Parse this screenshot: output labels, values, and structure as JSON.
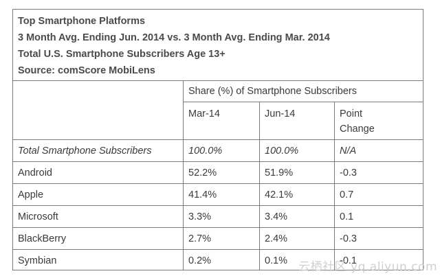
{
  "header": {
    "line1": "Top Smartphone Platforms",
    "line2": "3 Month Avg. Ending Jun. 2014 vs. 3 Month Avg. Ending Mar. 2014",
    "line3": "Total U.S. Smartphone Subscribers Age 13+",
    "line4": "Source: comScore MobiLens"
  },
  "group_header": "Share (%) of Smartphone Subscribers",
  "columns": {
    "c1": "Mar-14",
    "c2": "Jun-14",
    "c3_line1": "Point",
    "c3_line2": "Change"
  },
  "rows": [
    {
      "name": "Total Smartphone Subscribers",
      "mar": "100.0%",
      "jun": "100.0%",
      "change": "N/A"
    },
    {
      "name": "Android",
      "mar": "52.2%",
      "jun": "51.9%",
      "change": "-0.3"
    },
    {
      "name": "Apple",
      "mar": "41.4%",
      "jun": "42.1%",
      "change": "0.7"
    },
    {
      "name": "Microsoft",
      "mar": "3.3%",
      "jun": "3.4%",
      "change": "0.1"
    },
    {
      "name": "BlackBerry",
      "mar": "2.7%",
      "jun": "2.4%",
      "change": "-0.3"
    },
    {
      "name": "Symbian",
      "mar": "0.2%",
      "jun": "0.1%",
      "change": "-0.1"
    }
  ],
  "watermark": "云栖社区 yq.aliyun.com",
  "chart_data": {
    "type": "table",
    "title": "Top Smartphone Platforms",
    "columns": [
      "Mar-14",
      "Jun-14",
      "Point Change"
    ],
    "categories": [
      "Total Smartphone Subscribers",
      "Android",
      "Apple",
      "Microsoft",
      "BlackBerry",
      "Symbian"
    ],
    "series": [
      {
        "name": "Mar-14",
        "values": [
          100.0,
          52.2,
          41.4,
          3.3,
          2.7,
          0.2
        ]
      },
      {
        "name": "Jun-14",
        "values": [
          100.0,
          51.9,
          42.1,
          3.4,
          2.4,
          0.1
        ]
      },
      {
        "name": "Point Change",
        "values": [
          null,
          -0.3,
          0.7,
          0.1,
          -0.3,
          -0.1
        ]
      }
    ]
  }
}
